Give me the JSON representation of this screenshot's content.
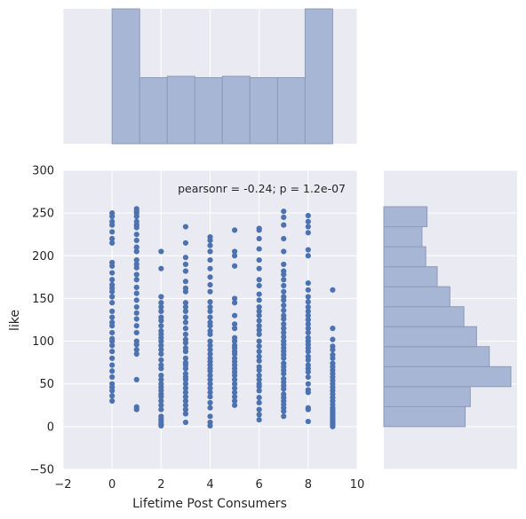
{
  "chart_data": [
    {
      "type": "scatter",
      "xlabel": "Lifetime Post Consumers",
      "ylabel": "like",
      "xlim": [
        -2,
        10
      ],
      "ylim": [
        -50,
        300
      ],
      "xticks": [
        "−2",
        "0",
        "2",
        "4",
        "6",
        "8",
        "10"
      ],
      "yticks": [
        "−50",
        "0",
        "50",
        "100",
        "150",
        "200",
        "250",
        "300"
      ],
      "annotation": "pearsonr = -0.24; p = 1.2e-07",
      "grid": true,
      "color": "#4c72b0",
      "points": {
        "0": [
          30,
          36,
          42,
          46,
          50,
          58,
          65,
          72,
          80,
          88,
          95,
          100,
          103,
          110,
          118,
          122,
          128,
          135,
          145,
          152,
          158,
          162,
          166,
          172,
          180,
          188,
          192,
          215,
          220,
          228,
          236,
          240,
          246,
          250
        ],
        "1": [
          20,
          23,
          55,
          85,
          90,
          96,
          100,
          110,
          118,
          126,
          133,
          140,
          148,
          156,
          163,
          172,
          178,
          186,
          190,
          195,
          205,
          210,
          218,
          225,
          233,
          236,
          240,
          246,
          250,
          252,
          255
        ],
        "2": [
          1,
          3,
          6,
          9,
          12,
          20,
          25,
          30,
          35,
          38,
          42,
          46,
          50,
          55,
          60,
          68,
          72,
          78,
          85,
          90,
          95,
          100,
          104,
          108,
          112,
          118,
          124,
          128,
          135,
          140,
          145,
          152,
          185,
          205
        ],
        "3": [
          5,
          15,
          20,
          25,
          30,
          35,
          40,
          45,
          50,
          55,
          58,
          62,
          68,
          72,
          75,
          80,
          88,
          92,
          98,
          102,
          108,
          115,
          122,
          128,
          135,
          140,
          145,
          158,
          162,
          170,
          182,
          190,
          198,
          215,
          234
        ],
        "4": [
          1,
          5,
          12,
          22,
          28,
          35,
          40,
          45,
          50,
          55,
          60,
          65,
          68,
          72,
          76,
          80,
          85,
          90,
          95,
          100,
          108,
          112,
          118,
          122,
          128,
          135,
          140,
          146,
          158,
          166,
          175,
          185,
          195,
          205,
          212,
          218,
          222
        ],
        "5": [
          25,
          30,
          35,
          40,
          45,
          50,
          55,
          60,
          64,
          68,
          72,
          76,
          80,
          85,
          88,
          92,
          95,
          100,
          104,
          115,
          120,
          130,
          145,
          150,
          188,
          200,
          205,
          230
        ],
        "6": [
          8,
          14,
          20,
          28,
          34,
          42,
          47,
          50,
          55,
          60,
          66,
          70,
          77,
          82,
          88,
          94,
          100,
          108,
          113,
          118,
          124,
          130,
          135,
          140,
          148,
          155,
          165,
          172,
          185,
          195,
          208,
          220,
          230,
          232
        ],
        "7": [
          12,
          18,
          22,
          26,
          30,
          34,
          38,
          44,
          48,
          52,
          56,
          62,
          66,
          70,
          74,
          80,
          84,
          88,
          92,
          96,
          100,
          105,
          110,
          115,
          120,
          126,
          130,
          136,
          142,
          148,
          152,
          158,
          165,
          172,
          178,
          182,
          190,
          205,
          220,
          236,
          245,
          252
        ],
        "8": [
          6,
          20,
          22,
          40,
          43,
          50,
          58,
          64,
          68,
          72,
          78,
          82,
          88,
          92,
          96,
          100,
          104,
          110,
          115,
          120,
          125,
          130,
          135,
          140,
          146,
          152,
          160,
          168,
          200,
          207,
          227,
          234,
          240,
          247
        ],
        "9": [
          0,
          2,
          4,
          6,
          8,
          10,
          12,
          14,
          16,
          18,
          20,
          22,
          26,
          30,
          34,
          38,
          42,
          46,
          50,
          54,
          58,
          62,
          66,
          70,
          74,
          80,
          84,
          90,
          94,
          102,
          115,
          160
        ]
      }
    },
    {
      "type": "bar",
      "orientation": "vertical",
      "role": "marginal histogram of Lifetime Post Consumers",
      "bin_edges": [
        0,
        1.125,
        2.25,
        3.375,
        4.5,
        5.625,
        6.75,
        7.875,
        9
      ],
      "values": [
        1.0,
        0.49,
        0.5,
        0.49,
        0.5,
        0.49,
        0.49,
        1.0
      ],
      "color": "#a8b6d5"
    },
    {
      "type": "bar",
      "orientation": "horizontal",
      "role": "marginal histogram of like",
      "bin_edges": [
        0,
        23.4,
        46.8,
        70.2,
        93.6,
        117,
        140.4,
        163.8,
        187.2,
        210.6,
        234,
        257.4
      ],
      "values": [
        0.64,
        0.68,
        1.0,
        0.83,
        0.73,
        0.63,
        0.52,
        0.42,
        0.33,
        0.3,
        0.34
      ],
      "color": "#a8b6d5"
    }
  ]
}
